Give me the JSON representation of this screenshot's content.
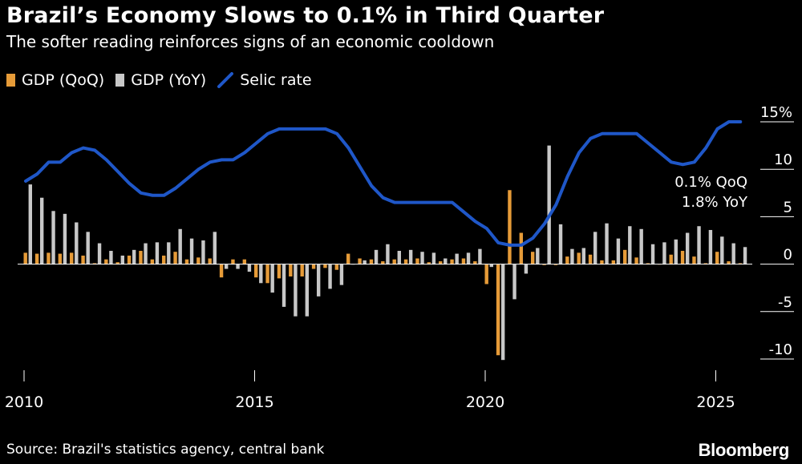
{
  "title": "Brazil’s Economy Slows to 0.1% in Third Quarter",
  "subtitle": "The softer reading reinforces signs of an economic cooldown",
  "legend": [
    {
      "label": "GDP (QoQ)",
      "color": "#e69b38",
      "icon": "bar-swatch"
    },
    {
      "label": "GDP (YoY)",
      "color": "#c8c8c8",
      "icon": "bar-swatch"
    },
    {
      "label": "Selic rate",
      "color": "#1f57c8",
      "icon": "line-swatch"
    }
  ],
  "annotation": {
    "line1": "0.1% QoQ",
    "line2": "1.8% YoY"
  },
  "source": "Source: Brazil's statistics agency, central bank",
  "logo": "Bloomberg",
  "colors": {
    "background": "#000000",
    "qoq": "#e69b38",
    "yoy": "#c8c8c8",
    "selic": "#1f57c8",
    "text": "#ffffff",
    "zero_line": "#ffffff"
  },
  "chart_data": {
    "type": "bar",
    "xlim": [
      2010.0,
      2026.0
    ],
    "ylim": [
      -10,
      15
    ],
    "y_ticks": [
      15,
      10,
      5,
      0,
      -5,
      -10
    ],
    "y_tick_labels": [
      "15%",
      "10",
      "5",
      "0",
      "-5",
      "-10"
    ],
    "x_ticks": [
      2010,
      2015,
      2020,
      2025
    ],
    "x_tick_labels": [
      "2010",
      "2015",
      "2020",
      "2025"
    ],
    "categories": [
      "2010 Q1",
      "2010 Q2",
      "2010 Q3",
      "2010 Q4",
      "2011 Q1",
      "2011 Q2",
      "2011 Q3",
      "2011 Q4",
      "2012 Q1",
      "2012 Q2",
      "2012 Q3",
      "2012 Q4",
      "2013 Q1",
      "2013 Q2",
      "2013 Q3",
      "2013 Q4",
      "2014 Q1",
      "2014 Q2",
      "2014 Q3",
      "2014 Q4",
      "2015 Q1",
      "2015 Q2",
      "2015 Q3",
      "2015 Q4",
      "2016 Q1",
      "2016 Q2",
      "2016 Q3",
      "2016 Q4",
      "2017 Q1",
      "2017 Q2",
      "2017 Q3",
      "2017 Q4",
      "2018 Q1",
      "2018 Q2",
      "2018 Q3",
      "2018 Q4",
      "2019 Q1",
      "2019 Q2",
      "2019 Q3",
      "2019 Q4",
      "2020 Q1",
      "2020 Q2",
      "2020 Q3",
      "2020 Q4",
      "2021 Q1",
      "2021 Q2",
      "2021 Q3",
      "2021 Q4",
      "2022 Q1",
      "2022 Q2",
      "2022 Q3",
      "2022 Q4",
      "2023 Q1",
      "2023 Q2",
      "2023 Q3",
      "2023 Q4",
      "2024 Q1",
      "2024 Q2",
      "2024 Q3",
      "2024 Q4",
      "2025 Q1",
      "2025 Q2",
      "2025 Q3"
    ],
    "series": [
      {
        "name": "GDP (QoQ)",
        "values": [
          1.2,
          1.1,
          1.2,
          1.1,
          1.2,
          0.9,
          0.1,
          0.5,
          0.2,
          0.9,
          1.4,
          0.5,
          0.9,
          1.3,
          0.5,
          0.7,
          0.6,
          -1.4,
          0.5,
          0.5,
          -1.4,
          -2.0,
          -1.5,
          -1.3,
          -1.3,
          -0.5,
          -0.4,
          -0.6,
          1.1,
          0.6,
          0.5,
          0.3,
          0.5,
          0.5,
          0.6,
          0.2,
          0.3,
          0.5,
          0.6,
          0.3,
          -2.1,
          -9.6,
          7.8,
          3.3,
          1.3,
          -0.1,
          -0.1,
          0.8,
          1.2,
          1.0,
          0.4,
          0.4,
          1.5,
          0.7,
          0.1,
          0.0,
          1.0,
          1.4,
          0.8,
          0.1,
          1.3,
          0.3,
          0.1
        ]
      },
      {
        "name": "GDP (YoY)",
        "values": [
          8.4,
          7.0,
          5.6,
          5.3,
          4.4,
          3.4,
          2.2,
          1.4,
          0.9,
          1.5,
          2.2,
          2.3,
          2.3,
          3.7,
          2.7,
          2.5,
          3.4,
          -0.5,
          -0.5,
          -0.8,
          -2.0,
          -3.0,
          -4.5,
          -5.5,
          -5.5,
          -3.4,
          -2.6,
          -2.2,
          0.0,
          0.4,
          1.5,
          2.1,
          1.4,
          1.5,
          1.3,
          1.2,
          0.6,
          1.1,
          1.2,
          1.6,
          -0.3,
          -10.1,
          -3.7,
          -1.0,
          1.7,
          12.5,
          4.2,
          1.6,
          1.7,
          3.4,
          4.3,
          2.7,
          4.0,
          3.7,
          2.1,
          2.3,
          2.6,
          3.3,
          4.0,
          3.6,
          2.9,
          2.2,
          1.8
        ]
      },
      {
        "name": "Selic rate",
        "values": [
          8.75,
          9.5,
          10.75,
          10.75,
          11.75,
          12.25,
          12.0,
          11.0,
          9.75,
          8.5,
          7.5,
          7.25,
          7.25,
          8.0,
          9.0,
          10.0,
          10.75,
          11.0,
          11.0,
          11.75,
          12.75,
          13.75,
          14.25,
          14.25,
          14.25,
          14.25,
          14.25,
          13.75,
          12.25,
          10.25,
          8.25,
          7.0,
          6.5,
          6.5,
          6.5,
          6.5,
          6.5,
          6.5,
          5.5,
          4.5,
          3.75,
          2.25,
          2.0,
          2.0,
          2.75,
          4.25,
          6.25,
          9.25,
          11.75,
          13.25,
          13.75,
          13.75,
          13.75,
          13.75,
          12.75,
          11.75,
          10.75,
          10.5,
          10.75,
          12.25,
          14.25,
          15.0,
          15.0
        ]
      }
    ]
  }
}
